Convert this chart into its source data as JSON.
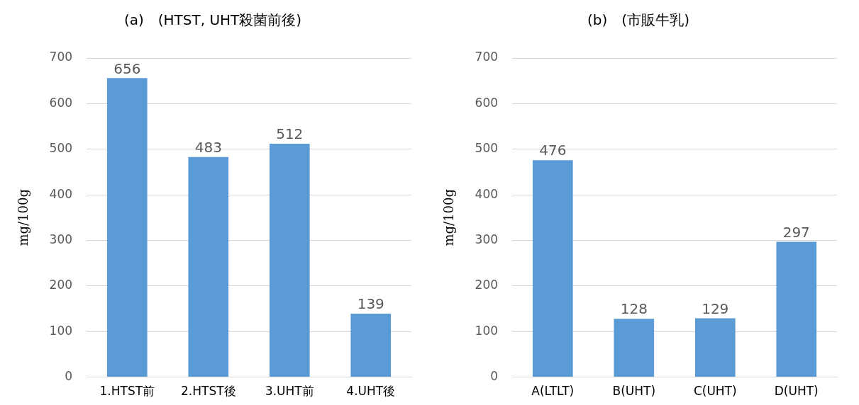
{
  "chart_data": [
    {
      "type": "bar",
      "title": "(a)　(HTST, UHT殺菌前後)",
      "ylabel": "mg/100g",
      "categories": [
        "1.HTST前",
        "2.HTST後",
        "3.UHT前",
        "4.UHT後"
      ],
      "values": [
        656,
        483,
        512,
        139
      ],
      "color": "#5b9bd5",
      "ylim": [
        0,
        700
      ],
      "yticks": [
        0,
        100,
        200,
        300,
        400,
        500,
        600,
        700
      ],
      "grid": "y",
      "data_labels": true
    },
    {
      "type": "bar",
      "title": "(b)　(市販牛乳)",
      "ylabel": "mg/100g",
      "categories": [
        "A(LTLT)",
        "B(UHT)",
        "C(UHT)",
        "D(UHT)"
      ],
      "values": [
        476,
        128,
        129,
        297
      ],
      "color": "#5b9bd5",
      "ylim": [
        0,
        700
      ],
      "yticks": [
        0,
        100,
        200,
        300,
        400,
        500,
        600,
        700
      ],
      "grid": "y",
      "data_labels": true
    }
  ]
}
